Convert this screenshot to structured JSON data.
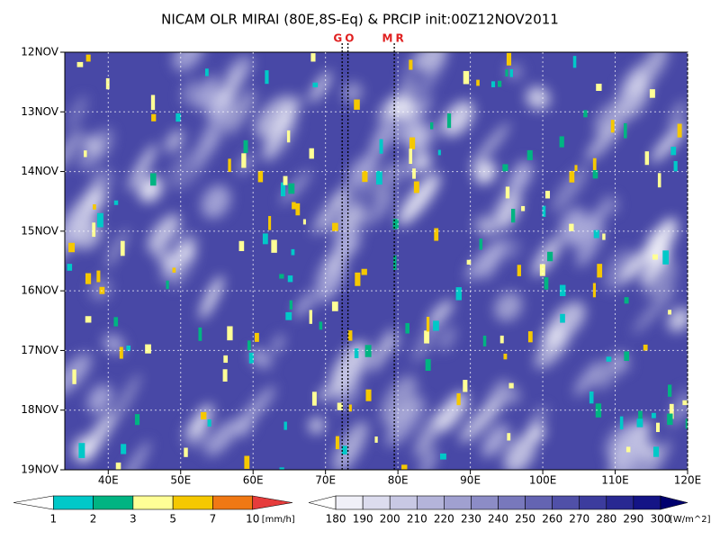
{
  "chart_data": {
    "type": "hovmoller",
    "title": "NICAM OLR MIRAI (80E,8S-Eq) & PRCIP init:00Z12NOV2011",
    "xlim": [
      34,
      120
    ],
    "xticks": [
      {
        "value": 40,
        "label": "40E"
      },
      {
        "value": 50,
        "label": "50E"
      },
      {
        "value": 60,
        "label": "60E"
      },
      {
        "value": 70,
        "label": "70E"
      },
      {
        "value": 80,
        "label": "80E"
      },
      {
        "value": 90,
        "label": "90E"
      },
      {
        "value": 100,
        "label": "100E"
      },
      {
        "value": 110,
        "label": "110E"
      },
      {
        "value": 120,
        "label": "120E"
      }
    ],
    "yticks": [
      "12NOV",
      "13NOV",
      "14NOV",
      "15NOV",
      "16NOV",
      "17NOV",
      "18NOV",
      "19NOV"
    ],
    "grid": true,
    "markers": [
      {
        "label": "GO",
        "x": [
          72.3,
          73.1
        ]
      },
      {
        "label": "MR",
        "x": [
          79.5
        ]
      }
    ],
    "colorbars": [
      {
        "levels": [
          1,
          2,
          3,
          5,
          7,
          10
        ],
        "unit": "[mm/h]",
        "colors": [
          "#ffffff",
          "#00c8c8",
          "#00b482",
          "#ffff96",
          "#f5c800",
          "#f07814",
          "#e63c3c"
        ]
      },
      {
        "levels": [
          180,
          190,
          200,
          210,
          220,
          230,
          240,
          250,
          260,
          270,
          280,
          290,
          300
        ],
        "unit": "[W/m^2]",
        "colors": [
          "#ffffff",
          "#f0f0f8",
          "#dcdcee",
          "#c8c8e4",
          "#b4b4da",
          "#a0a0d0",
          "#8c8cc6",
          "#7878bc",
          "#6464b2",
          "#5050a8",
          "#3c3c9e",
          "#282892",
          "#141486",
          "#00006e"
        ]
      }
    ]
  }
}
